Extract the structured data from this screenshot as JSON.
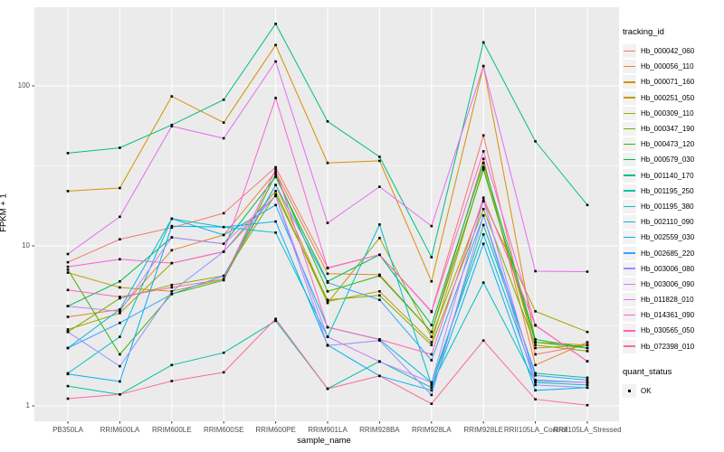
{
  "figure": {
    "background": "#ffffff",
    "panel_bg": "#ebebeb",
    "grid_color": "#ffffff",
    "tick_mark_color": "#333333",
    "tick_label_color": "#4d4d4d",
    "marker_color": "#000000",
    "legend_key_bg": "#f2f2f2"
  },
  "chart_data": {
    "type": "line",
    "title": "",
    "x_axis_label": "sample_name",
    "y_axis_label": "FPKM + 1",
    "y_scale": "log10",
    "y_ticks": [
      1,
      10,
      100
    ],
    "y_minor_ticks": [
      3.162,
      31.62
    ],
    "ylim_displayed": [
      0.8,
      310
    ],
    "grid": true,
    "legend_position": "right",
    "legend_titles": {
      "tracking_id": "tracking_id",
      "quant_status": "quant_status"
    },
    "quant_status_values": [
      "OK"
    ],
    "marker_shape": "small black square",
    "categories": [
      "PB350LA",
      "RRIM600LA",
      "RRIM600LE",
      "RRIM600SE",
      "RRIM600PE",
      "RRIM901LA",
      "RRIM928BA",
      "RRIM928LA",
      "RRIM928LE",
      "RRII105LA_Control",
      "RRII105LA_Stressed"
    ],
    "series": [
      {
        "name": "Hb_000042_060",
        "color": "#F8766D",
        "values": [
          7.9,
          11,
          13,
          16,
          31,
          7.3,
          8.8,
          3.9,
          49,
          2.1,
          2.4
        ]
      },
      {
        "name": "Hb_000056_110",
        "color": "#EA8331",
        "values": [
          3.6,
          4.0,
          9.4,
          11.7,
          29,
          6.7,
          6.6,
          2.9,
          35,
          1.8,
          2.5
        ]
      },
      {
        "name": "Hb_000071_160",
        "color": "#D89000",
        "values": [
          22,
          23,
          86,
          59,
          180,
          33,
          34,
          6.0,
          133,
          2.5,
          2.4
        ]
      },
      {
        "name": "Hb_000251_050",
        "color": "#C09B00",
        "values": [
          6.8,
          5.5,
          5.2,
          6.2,
          24,
          4.5,
          5.2,
          2.5,
          31,
          2.3,
          2.4
        ]
      },
      {
        "name": "Hb_000309_110",
        "color": "#A3A500",
        "values": [
          3.0,
          3.8,
          7.8,
          9.2,
          22,
          4.4,
          11.2,
          2.7,
          19,
          3.9,
          2.9
        ]
      },
      {
        "name": "Hb_000347_190",
        "color": "#7CAE00",
        "values": [
          2.9,
          4.7,
          5.7,
          6.5,
          21,
          4.6,
          4.9,
          2.4,
          17,
          2.4,
          2.2
        ]
      },
      {
        "name": "Hb_000473_120",
        "color": "#39B600",
        "values": [
          7.1,
          2.1,
          5.0,
          6.1,
          28,
          5.2,
          6.5,
          2.9,
          30,
          2.5,
          2.3
        ]
      },
      {
        "name": "Hb_000579_030",
        "color": "#00BB4E",
        "values": [
          4.2,
          6.0,
          11.3,
          10.3,
          27,
          6.0,
          8.8,
          3.2,
          33,
          2.6,
          2.3
        ]
      },
      {
        "name": "Hb_001140_170",
        "color": "#00BF7D",
        "values": [
          38,
          41,
          57,
          82,
          244,
          60,
          36,
          8.5,
          187,
          45,
          18
        ]
      },
      {
        "name": "Hb_001195_250",
        "color": "#00C1A3",
        "values": [
          1.33,
          1.18,
          1.8,
          2.15,
          3.4,
          1.28,
          1.9,
          1.3,
          13.5,
          1.6,
          1.5
        ]
      },
      {
        "name": "Hb_001195_380",
        "color": "#00BFC4",
        "values": [
          1.6,
          2.7,
          14.8,
          13.1,
          12.1,
          2.7,
          13.6,
          1.35,
          5.9,
          1.4,
          1.35
        ]
      },
      {
        "name": "Hb_002110_090",
        "color": "#00BAE0",
        "values": [
          2.3,
          4.0,
          14.8,
          11.7,
          18,
          3.1,
          2.6,
          1.4,
          11.8,
          1.45,
          1.4
        ]
      },
      {
        "name": "Hb_002559_030",
        "color": "#00B0F6",
        "values": [
          1.58,
          1.42,
          13.3,
          13.1,
          14.2,
          2.4,
          1.54,
          1.25,
          10.3,
          1.25,
          1.3
        ]
      },
      {
        "name": "Hb_002685_220",
        "color": "#35A2FF",
        "values": [
          2.3,
          3.3,
          5.0,
          6.5,
          24,
          5.9,
          4.6,
          1.93,
          15.5,
          1.55,
          1.45
        ]
      },
      {
        "name": "Hb_003006_080",
        "color": "#9590FF",
        "values": [
          2.9,
          1.77,
          5.2,
          9.2,
          20.5,
          2.38,
          2.56,
          1.17,
          15.5,
          1.35,
          1.3
        ]
      },
      {
        "name": "Hb_003006_090",
        "color": "#BF80FF",
        "values": [
          4.2,
          3.9,
          11.3,
          10.3,
          20.5,
          2.7,
          1.89,
          1.4,
          19.3,
          1.43,
          1.4
        ]
      },
      {
        "name": "Hb_011828_010",
        "color": "#E76BF3",
        "values": [
          8.9,
          15.2,
          56,
          47,
          142,
          13.9,
          23.4,
          13.3,
          133,
          6.95,
          6.9
        ]
      },
      {
        "name": "Hb_014361_090",
        "color": "#FA62DB",
        "values": [
          7.4,
          8.25,
          7.8,
          9.2,
          84,
          7.25,
          8.8,
          3.87,
          39,
          3.2,
          1.9
        ]
      },
      {
        "name": "Hb_030565_050",
        "color": "#FF62BC",
        "values": [
          5.3,
          4.8,
          5.5,
          6.2,
          30,
          3.1,
          2.6,
          2.1,
          20,
          3.18,
          1.9
        ]
      },
      {
        "name": "Hb_072398_010",
        "color": "#FF6A98",
        "values": [
          1.11,
          1.18,
          1.43,
          1.62,
          3.5,
          1.28,
          1.54,
          1.03,
          2.56,
          1.1,
          1.01
        ]
      }
    ]
  }
}
